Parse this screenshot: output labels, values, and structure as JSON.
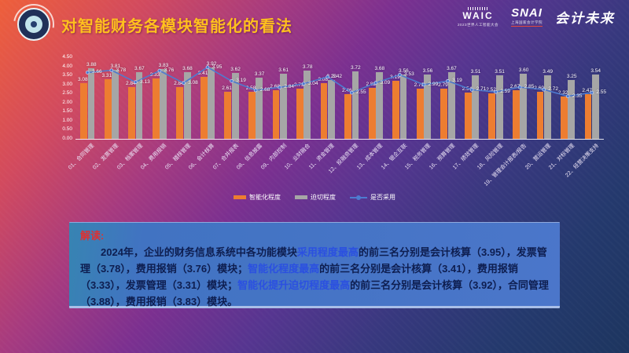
{
  "slide": {
    "title": "对智能财务各模块智能化的看法",
    "logos": {
      "waic": "WAIC",
      "waic_sub": "2023世界人工智能大会",
      "snai": "SNAI",
      "snai_sub": "上海国家会计学院",
      "brand": "会计未来"
    }
  },
  "chart_data": {
    "type": "bar",
    "title": "",
    "categories": [
      "01、合同管理",
      "02、发票管理",
      "03、档案管理",
      "04、费用报销",
      "05、稽核管理",
      "06、会计核算",
      "07、合并报表",
      "08、信息披露",
      "09、内部控制",
      "10、业财融合",
      "11、资金管理",
      "12、投融资管理",
      "13、成本管理",
      "14、银企互联",
      "15、税务管理",
      "16、预算管理",
      "17、绩效管理",
      "18、风险管理",
      "19、管理会计报表/报告",
      "20、营运管理",
      "21、对标管理",
      "22、经营决策支持"
    ],
    "series": [
      {
        "name": "智能化程度",
        "type": "bar",
        "color": "#ED7D31",
        "values": [
          3.08,
          3.31,
          2.84,
          3.33,
          2.84,
          3.41,
          2.61,
          2.58,
          2.68,
          2.79,
          3.08,
          2.46,
          2.82,
          3.19,
          2.79,
          2.79,
          2.54,
          2.52,
          2.67,
          2.6,
          2.32,
          2.47
        ]
      },
      {
        "name": "迫切程度",
        "type": "bar",
        "color": "#A6A6A6",
        "values": [
          3.88,
          3.81,
          3.67,
          3.83,
          3.68,
          3.92,
          3.62,
          3.37,
          3.61,
          3.78,
          3.23,
          3.72,
          3.68,
          3.56,
          3.56,
          3.67,
          3.51,
          3.51,
          3.6,
          3.49,
          3.25,
          3.54
        ]
      },
      {
        "name": "是否采用",
        "type": "line",
        "color": "#4E7BD0",
        "values": [
          3.66,
          3.78,
          3.13,
          3.76,
          3.08,
          3.95,
          3.19,
          2.68,
          2.84,
          3.04,
          3.42,
          2.55,
          3.09,
          3.53,
          2.99,
          3.19,
          2.71,
          2.59,
          2.85,
          2.72,
          2.35,
          2.55
        ]
      }
    ],
    "ylim": [
      0,
      4.5
    ],
    "yticks": [
      "0.00",
      "0.50",
      "1.00",
      "1.50",
      "2.00",
      "2.50",
      "3.00",
      "3.50",
      "4.00",
      "4.50"
    ],
    "grid": false,
    "legend_position": "bottom",
    "value_labels": true
  },
  "interpretation": {
    "label": "解读:",
    "highlight_color": "#2b50e0",
    "segments": [
      {
        "text": "2024年，企业的财务信息系统中各功能模块",
        "highlight": false
      },
      {
        "text": "采用程度最高",
        "highlight": true
      },
      {
        "text": "的前三名分别是会计核算（3.95），发票管理（3.78），费用报销（3.76）模块；",
        "highlight": false
      },
      {
        "text": "智能化程度最高",
        "highlight": true
      },
      {
        "text": "的前三名分别是会计核算（3.41），费用报销（3.33），发票管理（3.31）模块；",
        "highlight": false
      },
      {
        "text": "智能化提升迫切程度最高",
        "highlight": true
      },
      {
        "text": "的前三名分别是会计核算（3.92），合同管理（3.88），费用报销（3.83）模块。",
        "highlight": false
      }
    ]
  }
}
